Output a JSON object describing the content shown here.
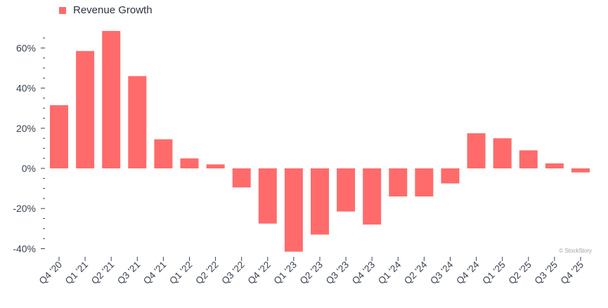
{
  "legend": {
    "label": "Revenue Growth"
  },
  "credit": "© StockStory",
  "colors": {
    "bar": "#ff6b6b",
    "axis": "#3a4150",
    "text": "#3a4150"
  },
  "chart_data": {
    "type": "bar",
    "title": "",
    "xlabel": "",
    "ylabel": "",
    "categories": [
      "Q4 '20",
      "Q1 '21",
      "Q2 '21",
      "Q3 '21",
      "Q4 '21",
      "Q1 '22",
      "Q2 '22",
      "Q3 '22",
      "Q4 '22",
      "Q1 '23",
      "Q2 '23",
      "Q3 '23",
      "Q4 '23",
      "Q1 '24",
      "Q2 '24",
      "Q3 '24",
      "Q4 '24",
      "Q1 '25",
      "Q2 '25",
      "Q3 '25",
      "Q4 '25"
    ],
    "series": [
      {
        "name": "Revenue Growth",
        "values": [
          31.5,
          58.5,
          68.5,
          46,
          14.5,
          5,
          2,
          -9.5,
          -27.5,
          -41.5,
          -33,
          -21.5,
          -28,
          -14,
          -14,
          -7.5,
          17.5,
          15,
          9,
          2.5,
          -2
        ]
      }
    ],
    "ylim": [
      -43,
      68
    ],
    "yticks": [
      -40,
      -20,
      0,
      20,
      40,
      60
    ],
    "ytick_labels": [
      "-40%",
      "-20%",
      "0%",
      "20%",
      "40%",
      "60%"
    ],
    "grid": false,
    "legend_position": "top-left"
  }
}
